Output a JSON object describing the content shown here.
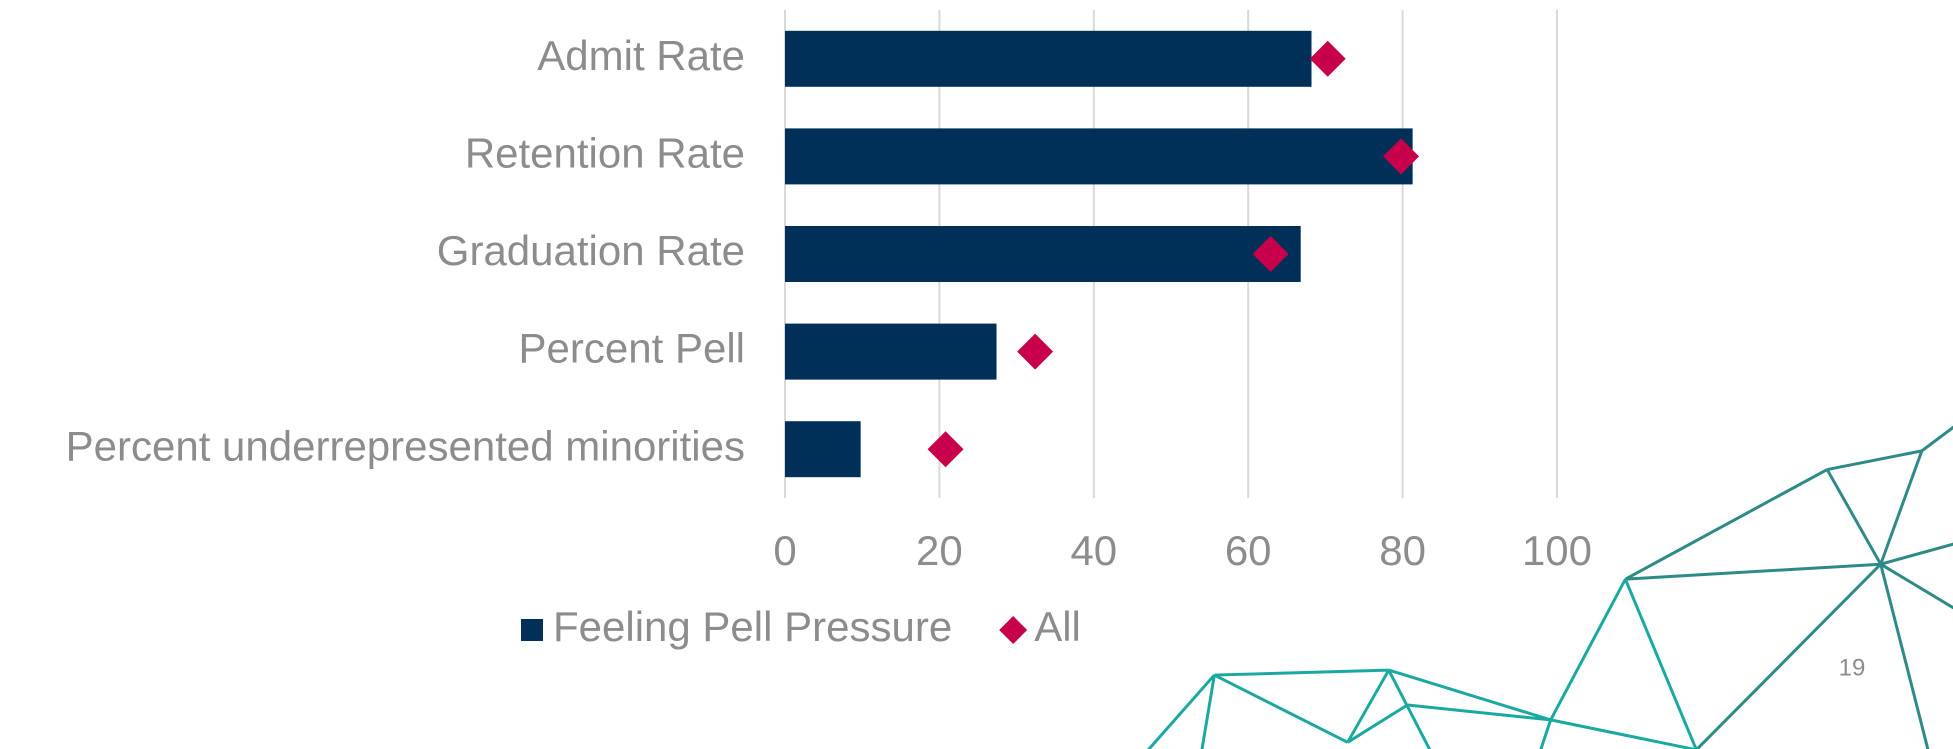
{
  "chart_data": {
    "type": "bar",
    "orientation": "horizontal",
    "categories": [
      "Admit Rate",
      "Retention Rate",
      "Graduation Rate",
      "Percent Pell",
      "Percent underrepresented minorities"
    ],
    "series": [
      {
        "name": "Feeling Pell Pressure",
        "style": "bar",
        "color": "#003057",
        "values": [
          68.2,
          81.3,
          66.8,
          27.4,
          9.8
        ]
      },
      {
        "name": "All",
        "style": "marker",
        "color": "#c8004b",
        "values": [
          70.3,
          79.8,
          62.9,
          32.4,
          20.8
        ]
      }
    ],
    "xlim": [
      0,
      100
    ],
    "xticks": [
      0,
      20,
      40,
      60,
      80,
      100
    ],
    "grid": true,
    "legend": "bottom"
  },
  "page_number": "19"
}
